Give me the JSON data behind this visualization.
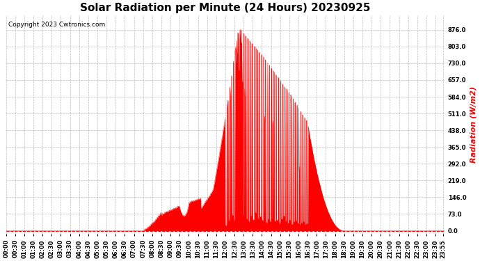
{
  "title": "Solar Radiation per Minute (24 Hours) 20230925",
  "ylabel": "Radiation (W/m2)",
  "copyright_text": "Copyright 2023 Cwtronics.com",
  "fill_color": "#ff0000",
  "line_color": "#ff0000",
  "background_color": "#ffffff",
  "grid_color": "#aaaaaa",
  "title_fontsize": 11,
  "label_fontsize": 8,
  "tick_fontsize": 6,
  "yticks": [
    0.0,
    73.0,
    146.0,
    219.0,
    292.0,
    365.0,
    438.0,
    511.0,
    584.0,
    657.0,
    730.0,
    803.0,
    876.0
  ],
  "ylim": [
    -15,
    940
  ],
  "total_minutes": 1440
}
